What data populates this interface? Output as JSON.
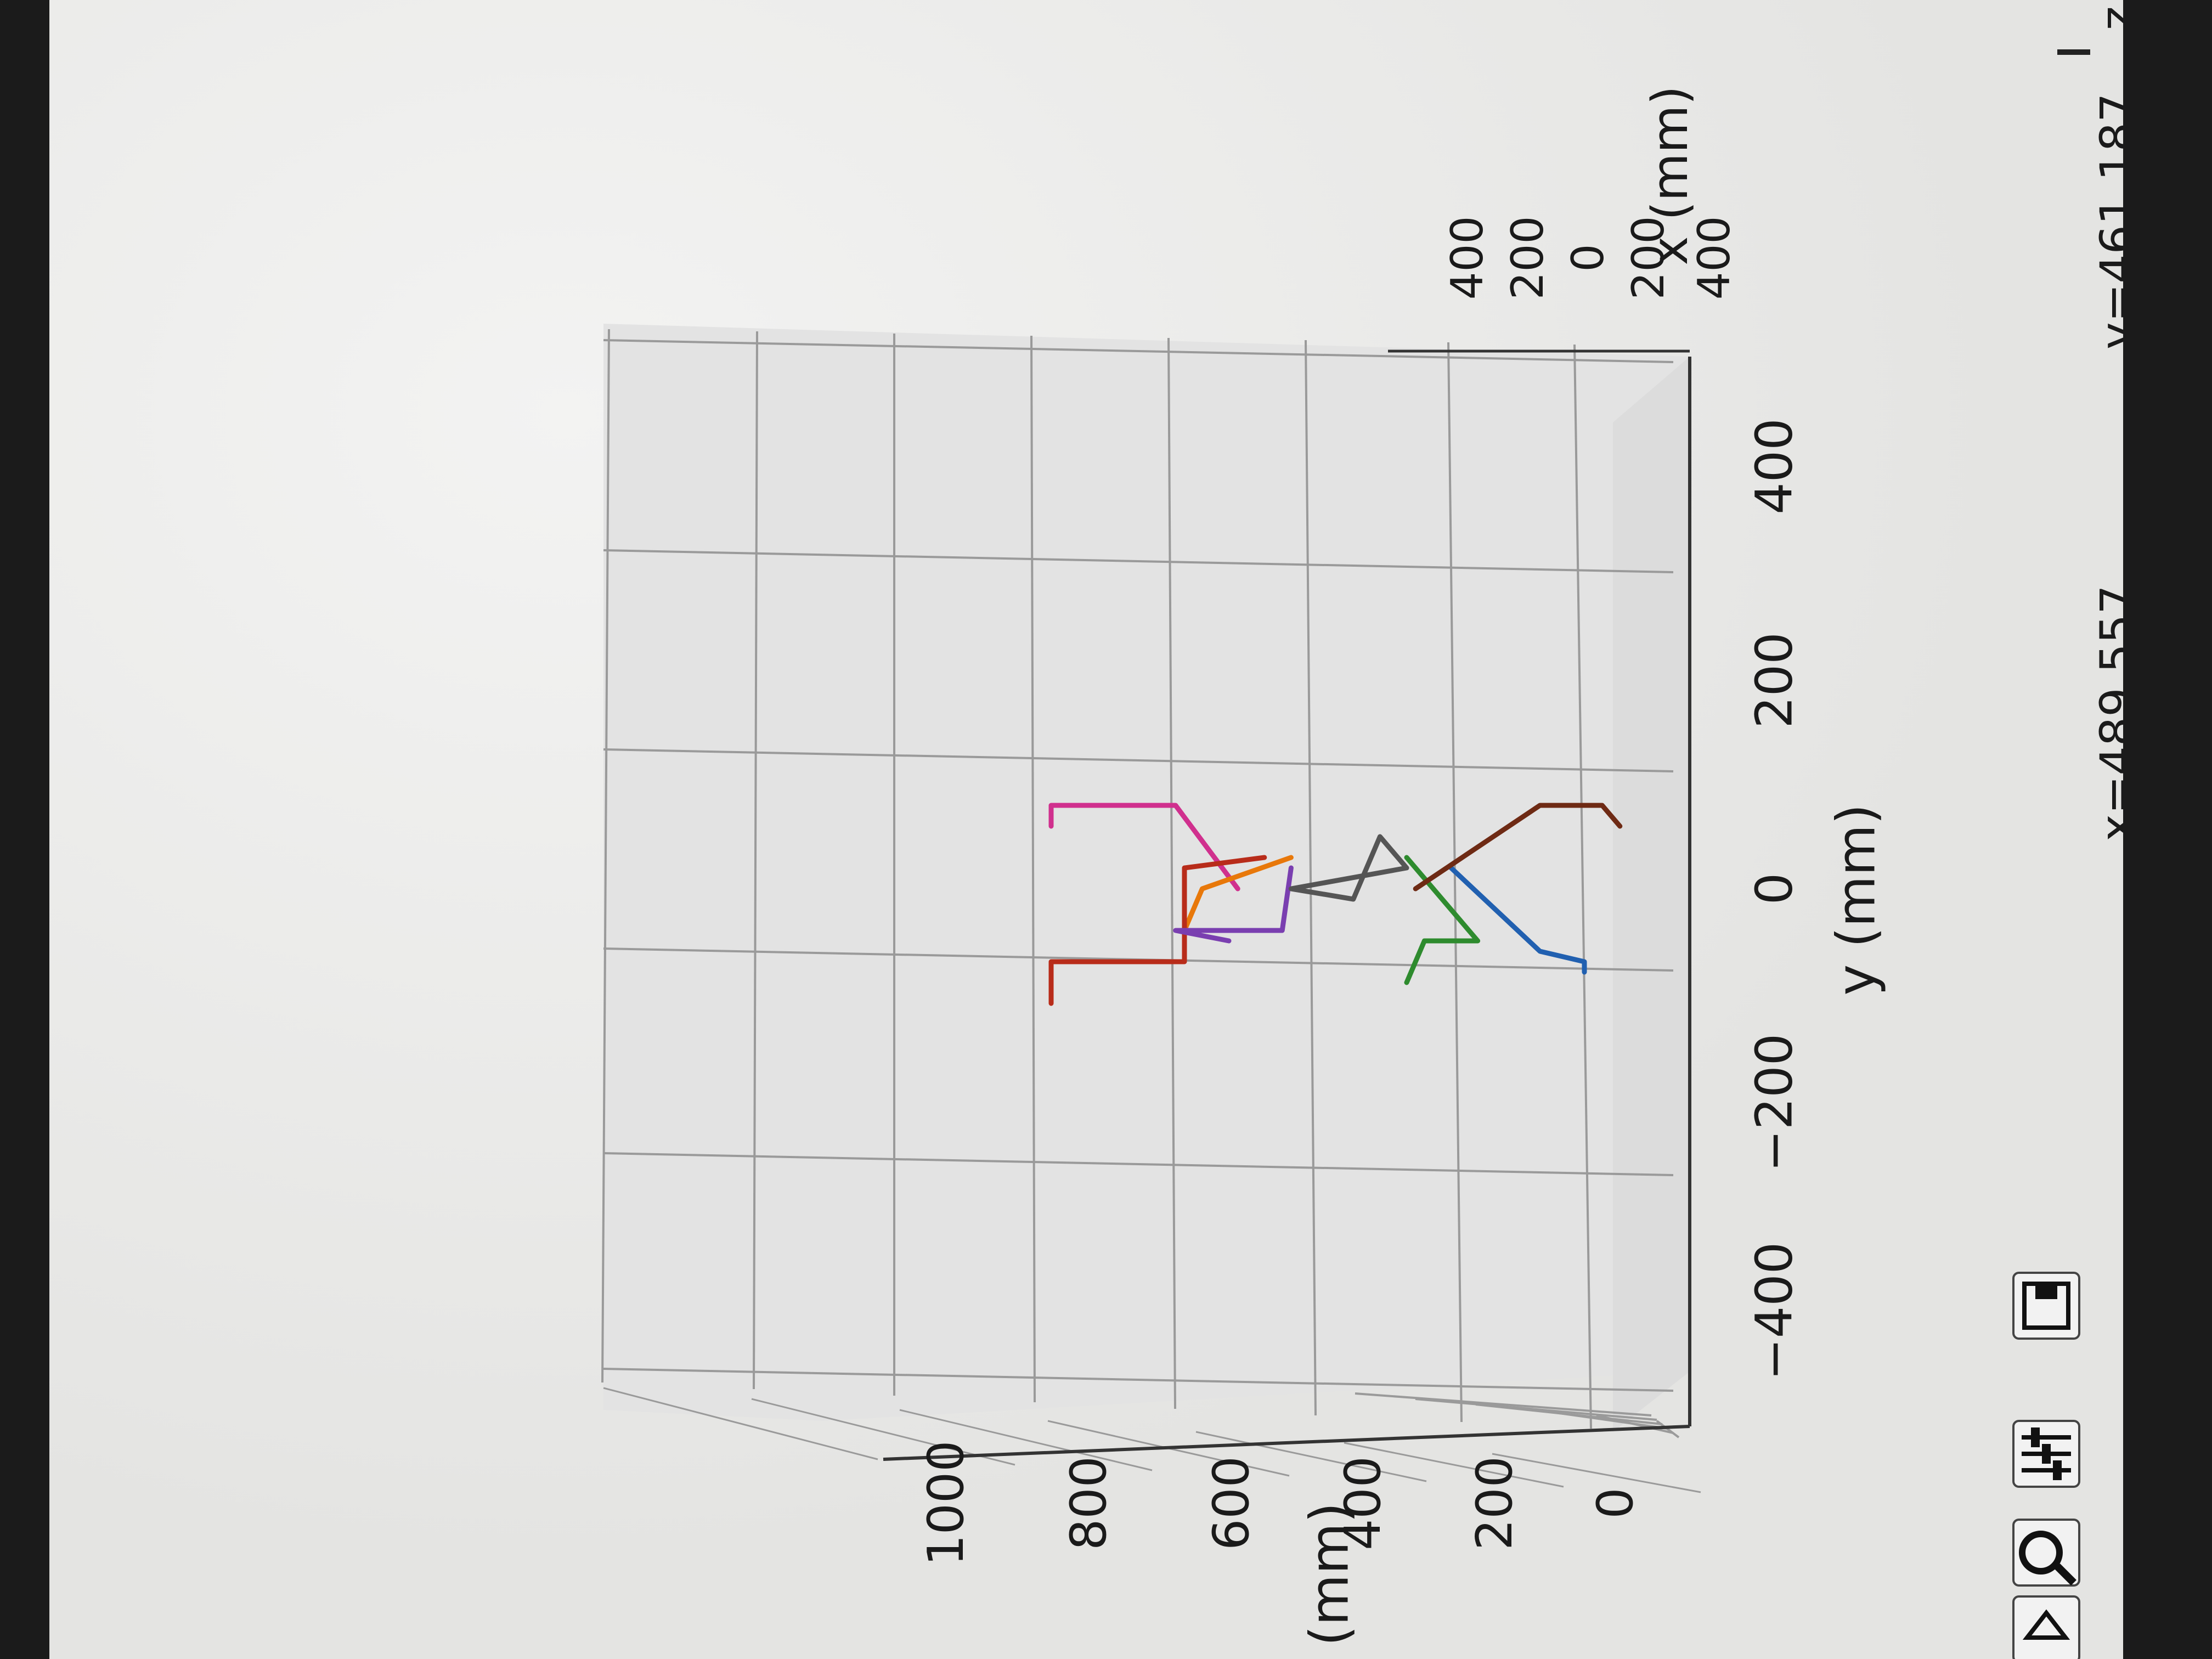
{
  "toolbar": {
    "icons": [
      "home-icon",
      "zoom-icon",
      "configure-subplots-icon",
      "save-icon"
    ]
  },
  "status": {
    "x_readout": "x=489.557",
    "y_readout": ", y=461.187",
    "z_readout": ", z"
  },
  "colors": {
    "grid": "#9a9a9a",
    "pane": "#e6e6e6",
    "background": "#e9e9e7",
    "series": [
      "#2160b0",
      "#2e8b2e",
      "#d0308e",
      "#e8780a",
      "#b82c1a",
      "#7a3fb0",
      "#6e2a14",
      "#555555"
    ]
  },
  "chart_data": {
    "type": "line",
    "projection": "3d",
    "xlabel": "x (mm)",
    "ylabel": "y (mm)",
    "zlabel": "z (mm)",
    "x_ticks": [
      "400",
      "200",
      "0",
      "200",
      "400"
    ],
    "y_ticks": [
      "−400",
      "−200",
      "0",
      "200",
      "400"
    ],
    "z_ticks": [
      "0",
      "200",
      "400",
      "600",
      "800",
      "1000"
    ],
    "xlim": [
      -400,
      400
    ],
    "ylim": [
      -400,
      400
    ],
    "zlim": [
      0,
      1000
    ],
    "grid": true,
    "series": [
      {
        "color": "#2160b0",
        "points": [
          [
            0,
            20,
            250
          ],
          [
            0,
            -60,
            150
          ],
          [
            0,
            -70,
            100
          ],
          [
            0,
            -80,
            100
          ]
        ]
      },
      {
        "color": "#2e8b2e",
        "points": [
          [
            0,
            30,
            300
          ],
          [
            0,
            -50,
            220
          ],
          [
            0,
            -50,
            280
          ],
          [
            0,
            -90,
            300
          ]
        ]
      },
      {
        "color": "#d0308e",
        "points": [
          [
            0,
            0,
            490
          ],
          [
            0,
            80,
            560
          ],
          [
            0,
            80,
            700
          ],
          [
            0,
            60,
            700
          ]
        ]
      },
      {
        "color": "#e8780a",
        "points": [
          [
            0,
            30,
            430
          ],
          [
            0,
            0,
            530
          ],
          [
            0,
            -40,
            550
          ],
          [
            0,
            -40,
            480
          ]
        ]
      },
      {
        "color": "#b82c1a",
        "points": [
          [
            0,
            30,
            460
          ],
          [
            0,
            20,
            550
          ],
          [
            0,
            -70,
            550
          ],
          [
            0,
            -70,
            700
          ],
          [
            0,
            -110,
            700
          ]
        ]
      },
      {
        "color": "#7a3fb0",
        "points": [
          [
            0,
            20,
            430
          ],
          [
            0,
            -40,
            440
          ],
          [
            0,
            -40,
            560
          ],
          [
            0,
            -50,
            500
          ]
        ]
      },
      {
        "color": "#6e2a14",
        "points": [
          [
            0,
            0,
            290
          ],
          [
            0,
            80,
            150
          ],
          [
            0,
            80,
            80
          ],
          [
            0,
            60,
            60
          ]
        ]
      },
      {
        "color": "#555555",
        "points": [
          [
            0,
            0,
            430
          ],
          [
            0,
            20,
            300
          ],
          [
            0,
            50,
            330
          ],
          [
            0,
            -10,
            360
          ],
          [
            0,
            0,
            430
          ]
        ]
      }
    ]
  }
}
